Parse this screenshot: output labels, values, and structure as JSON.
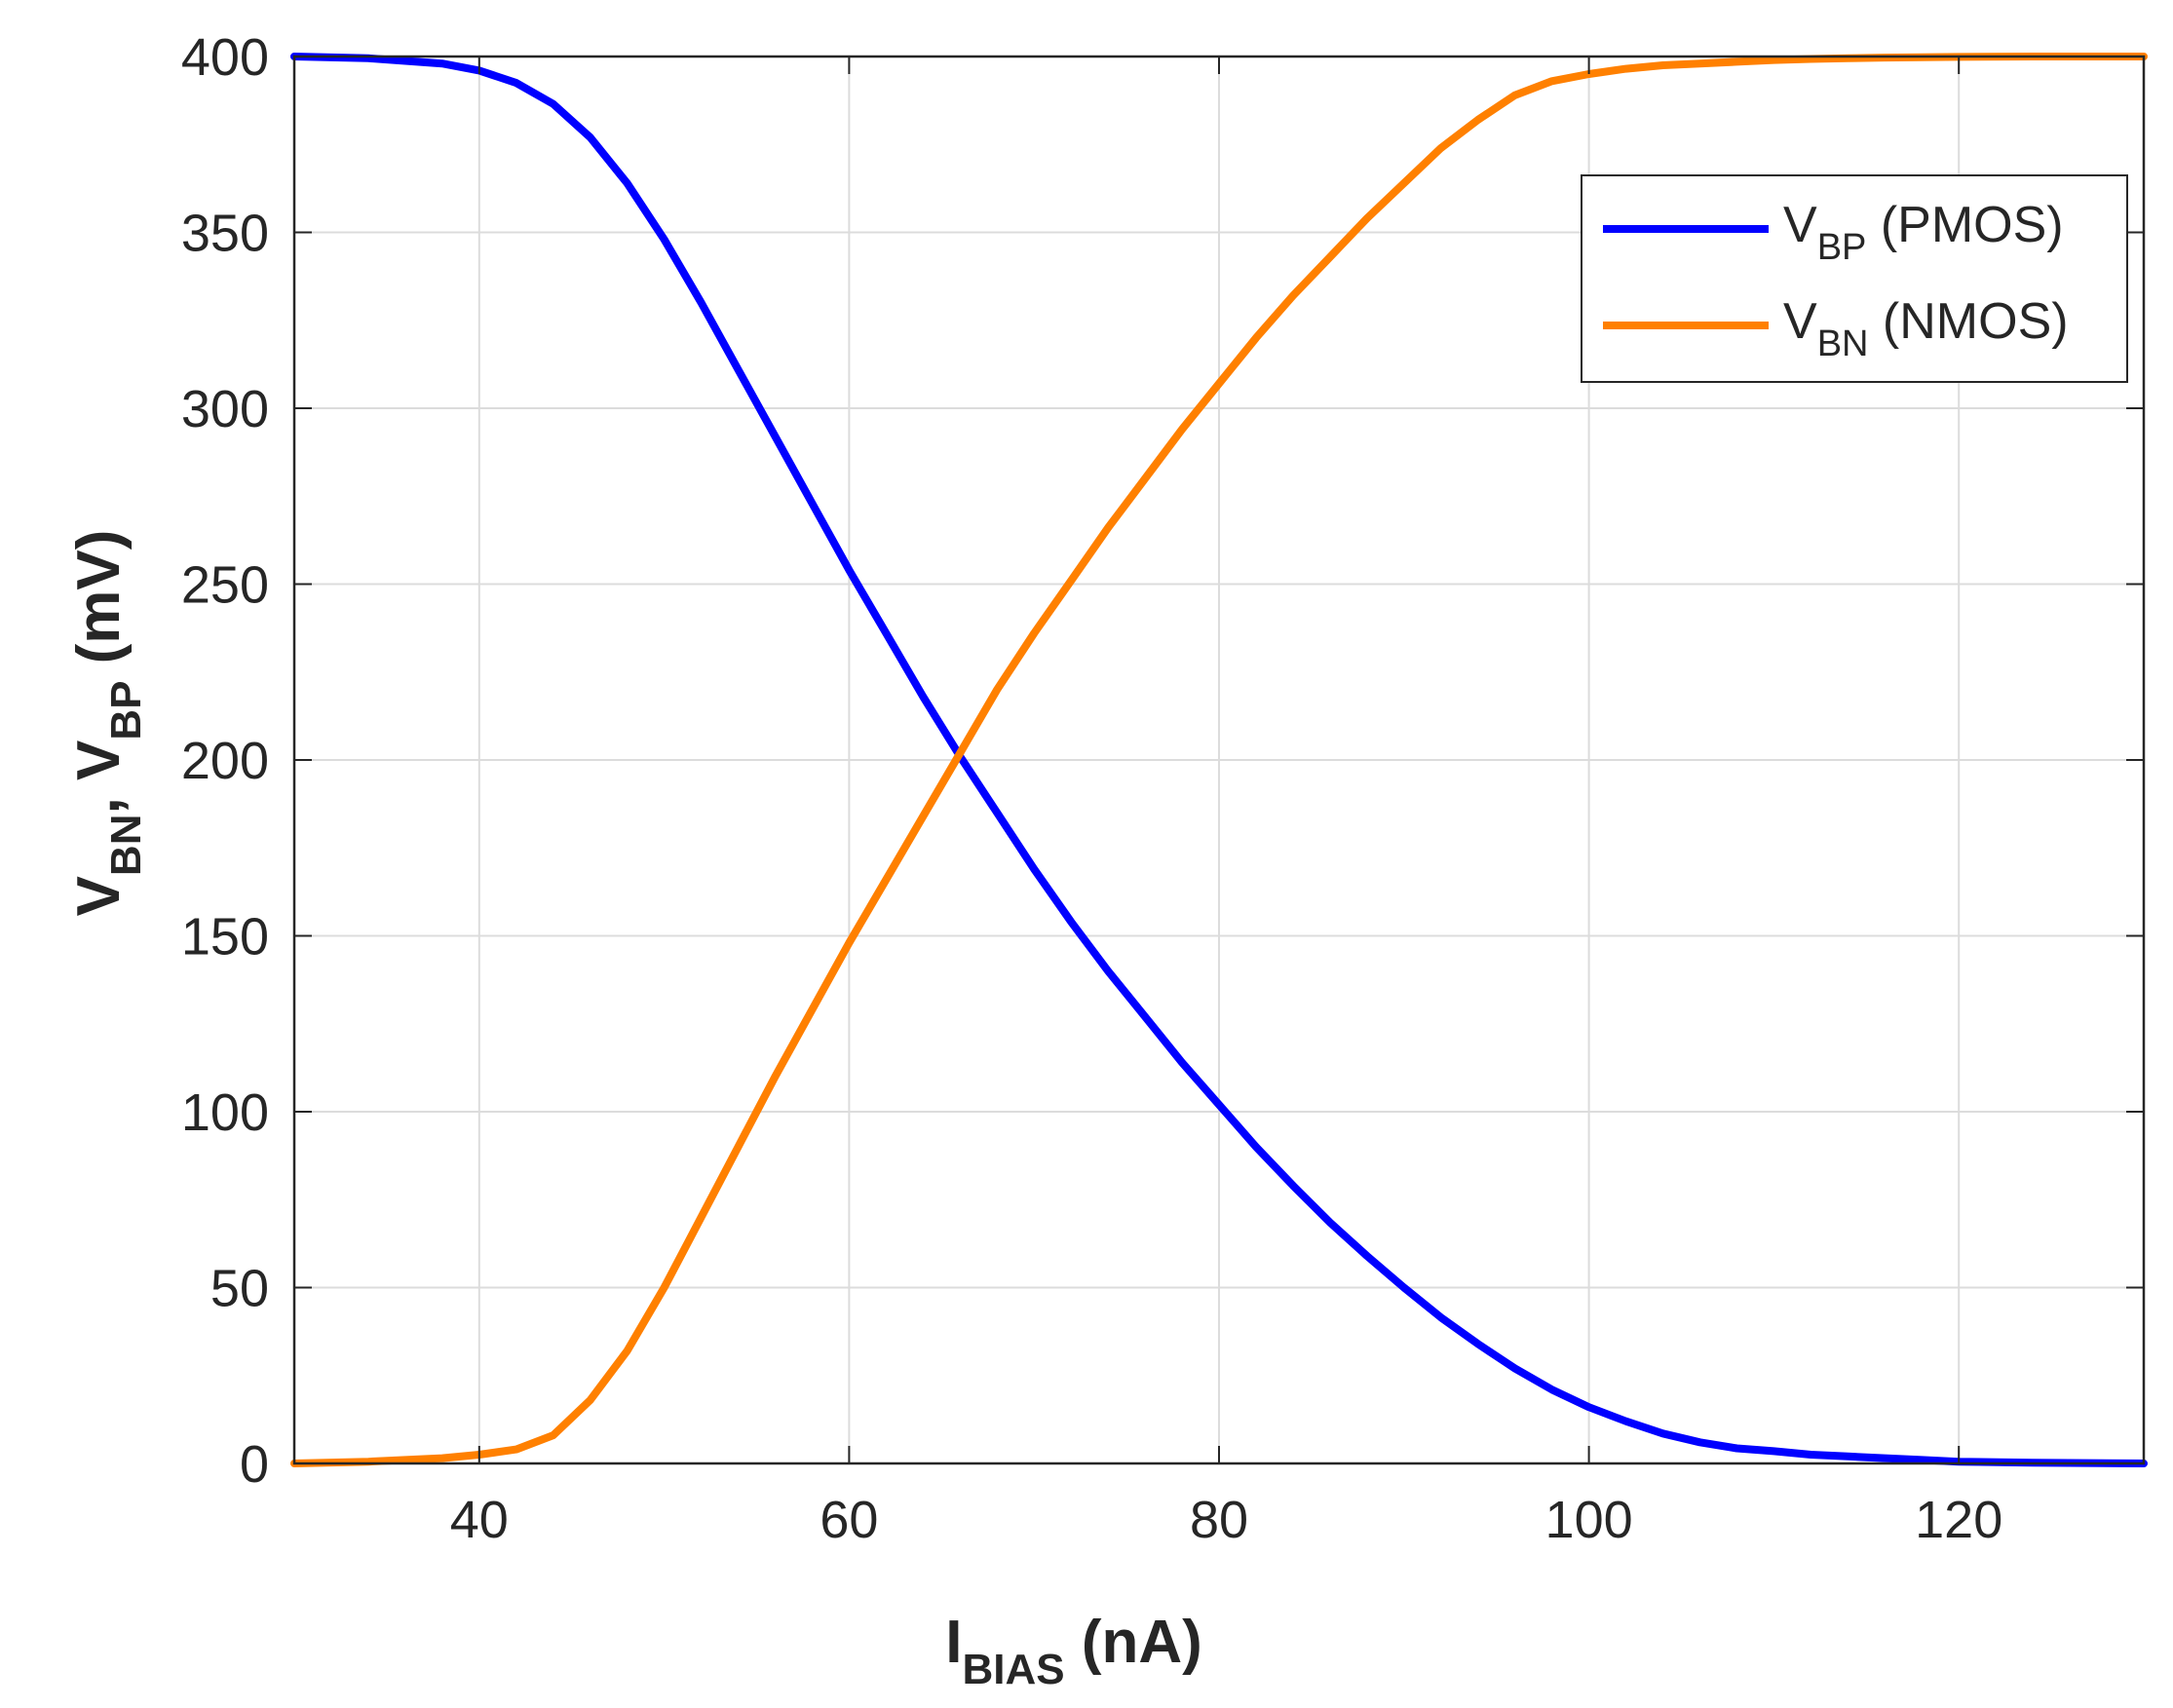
{
  "chart_data": {
    "type": "line",
    "title": "",
    "xlabel": {
      "main": "I",
      "sub": "BIAS",
      "unit": " (nA)"
    },
    "ylabel": {
      "v1": "V",
      "sub1": "BN",
      "sep": ", ",
      "v2": "V",
      "sub2": "BP",
      "unit": " (mV)"
    },
    "xlim": [
      30,
      130
    ],
    "ylim": [
      0,
      400
    ],
    "xticks": [
      40,
      60,
      80,
      100,
      120
    ],
    "yticks": [
      0,
      50,
      100,
      150,
      200,
      250,
      300,
      350,
      400
    ],
    "grid": true,
    "legend_location": "top-right",
    "series": [
      {
        "name": "VBP (PMOS)",
        "legend_main": "V",
        "legend_sub": "BP",
        "legend_rest": " (PMOS)",
        "color": "#0000ff",
        "x": [
          30,
          34,
          38,
          40,
          42,
          44,
          46,
          48,
          50,
          52,
          54,
          56,
          58,
          60,
          62,
          64,
          66,
          68,
          70,
          72,
          74,
          76,
          78,
          80,
          82,
          84,
          86,
          88,
          90,
          92,
          94,
          96,
          98,
          100,
          102,
          104,
          106,
          108,
          110,
          112,
          114,
          116,
          118,
          120,
          124,
          130
        ],
        "y": [
          400,
          399.5,
          398,
          396,
          392.5,
          386.5,
          377,
          364,
          348,
          330,
          311,
          292,
          273,
          254,
          236,
          218,
          201,
          185,
          169,
          154,
          140,
          127,
          114,
          102,
          90,
          79,
          68.5,
          59,
          50,
          41.5,
          34,
          27,
          21,
          16,
          12,
          8.5,
          6,
          4.3,
          3.5,
          2.5,
          2,
          1.5,
          1,
          0.5,
          0.2,
          0
        ]
      },
      {
        "name": "VBN (NMOS)",
        "legend_main": "V",
        "legend_sub": "BN",
        "legend_rest": " (NMOS)",
        "color": "#ff8000",
        "x": [
          30,
          34,
          38,
          40,
          42,
          44,
          46,
          48,
          50,
          52,
          54,
          56,
          58,
          60,
          62,
          64,
          66,
          68,
          70,
          72,
          74,
          76,
          78,
          80,
          82,
          84,
          86,
          88,
          90,
          92,
          94,
          96,
          98,
          100,
          102,
          104,
          106,
          108,
          110,
          112,
          114,
          116,
          118,
          120,
          124,
          130
        ],
        "y": [
          0,
          0.5,
          1.5,
          2.5,
          4,
          8,
          18,
          32,
          50,
          70,
          90,
          110,
          129,
          148,
          166,
          184,
          202,
          220,
          236,
          251,
          266,
          280,
          294,
          307,
          320,
          332,
          343,
          354,
          364,
          374,
          382,
          389,
          393,
          395,
          396.5,
          397.5,
          398,
          398.5,
          399,
          399.3,
          399.5,
          399.7,
          399.8,
          399.9,
          400,
          400
        ]
      }
    ]
  }
}
